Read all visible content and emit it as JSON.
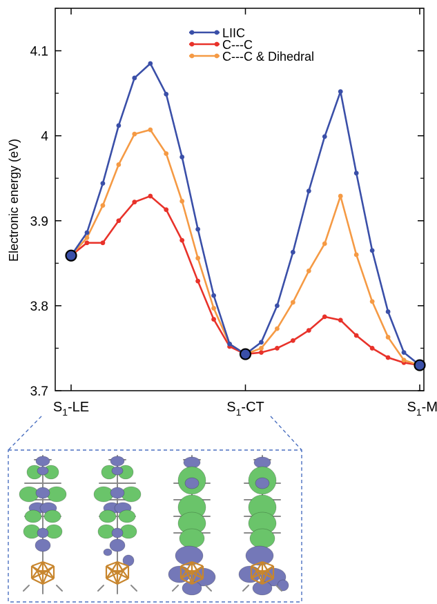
{
  "chart_data": {
    "type": "line",
    "title": "",
    "xlabel": "",
    "ylabel": "Electronic energy (eV)",
    "ylim": [
      3.7,
      4.15
    ],
    "yticks": [
      "3.7",
      "3.8",
      "3.9",
      "4",
      "4.1"
    ],
    "grid": false,
    "legend_position": "top-center",
    "x_categories": [
      {
        "main": "S",
        "sub": "1",
        "suffix": "-LE",
        "x": 0
      },
      {
        "main": "S",
        "sub": "1",
        "suffix": "-CT",
        "x": 11
      },
      {
        "main": "S",
        "sub": "1",
        "suffix": "-M",
        "x": 22
      }
    ],
    "xlim": [
      0,
      22
    ],
    "series": [
      {
        "name": "LIIC",
        "color": "#3a4fa8",
        "x": [
          0,
          1,
          2,
          3,
          4,
          5,
          6,
          7,
          8,
          9,
          10,
          11,
          12,
          13,
          14,
          15,
          16,
          17,
          18,
          19,
          20,
          21,
          22
        ],
        "values": [
          3.859,
          3.886,
          3.944,
          4.012,
          4.068,
          4.085,
          4.049,
          3.975,
          3.89,
          3.812,
          3.755,
          3.743,
          3.757,
          3.8,
          3.863,
          3.935,
          3.999,
          4.052,
          3.956,
          3.865,
          3.793,
          3.745,
          3.73
        ]
      },
      {
        "name": "C---C",
        "color": "#e8322a",
        "x": [
          0,
          1,
          2,
          3,
          4,
          5,
          6,
          7,
          8,
          9,
          10,
          11,
          12,
          13,
          14,
          15,
          16,
          17,
          18,
          19,
          20,
          21,
          22
        ],
        "values": [
          3.859,
          3.874,
          3.874,
          3.9,
          3.922,
          3.929,
          3.913,
          3.877,
          3.829,
          3.784,
          3.752,
          3.743,
          3.745,
          3.75,
          3.759,
          3.771,
          3.787,
          3.783,
          3.765,
          3.75,
          3.739,
          3.733,
          3.73
        ]
      },
      {
        "name": "C---C & Dihedral",
        "color": "#f59a44",
        "x": [
          0,
          1,
          2,
          3,
          4,
          5,
          6,
          7,
          8,
          9,
          10,
          11,
          12,
          13,
          14,
          15,
          16,
          17,
          18,
          19,
          20,
          21,
          22
        ],
        "values": [
          3.859,
          3.88,
          3.918,
          3.966,
          4.002,
          4.007,
          3.979,
          3.923,
          3.856,
          3.797,
          3.755,
          3.743,
          3.75,
          3.773,
          3.804,
          3.841,
          3.873,
          3.929,
          3.86,
          3.805,
          3.763,
          3.736,
          3.73
        ]
      }
    ],
    "highlighted_points": [
      {
        "x": 0,
        "y": 3.859
      },
      {
        "x": 11,
        "y": 3.743
      },
      {
        "x": 22,
        "y": 3.73
      }
    ]
  },
  "inset": {
    "structures": [
      {
        "id": "structure-1"
      },
      {
        "id": "structure-2"
      },
      {
        "id": "structure-3"
      },
      {
        "id": "structure-4"
      }
    ],
    "colors": {
      "green_lobe": "#6ac46a",
      "blue_lobe": "#7478b8",
      "cage": "#c8862e",
      "frame": "#4a6fc0"
    }
  }
}
